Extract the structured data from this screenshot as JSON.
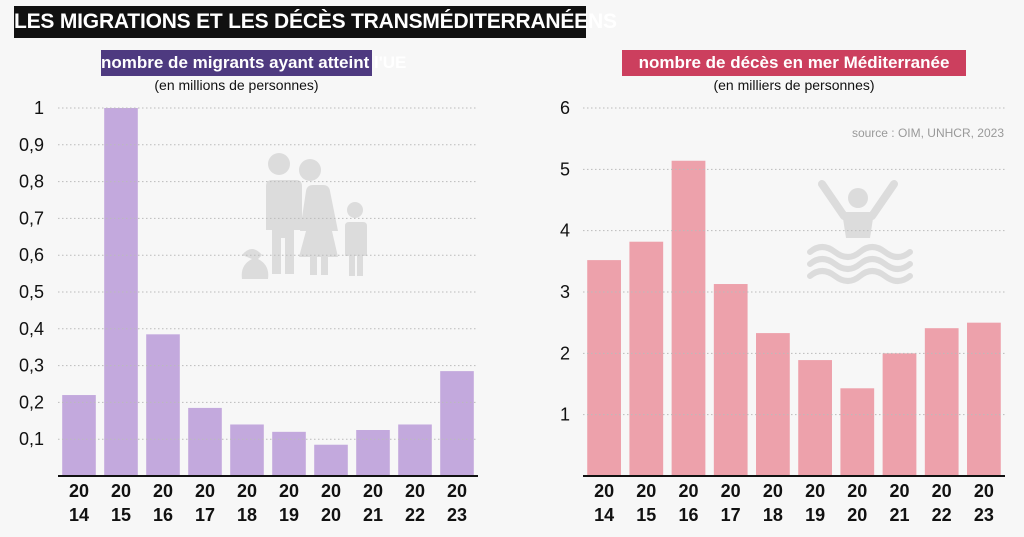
{
  "header": {
    "title": "LES MIGRATIONS ET LES DÉCÈS TRANSMÉDITERRANÉENS",
    "source": "source : OIM, UNHCR, 2023"
  },
  "colors": {
    "left_bar": "#c3a9dd",
    "right_bar": "#eda1ab",
    "left_title_bg": "#4e3a80",
    "right_title_bg": "#cc3f5e",
    "icon": "#dcdcdc"
  },
  "icons": {
    "left": "family-migrants-icon",
    "right": "drowning-person-icon"
  },
  "chart_data": [
    {
      "type": "bar",
      "title": "nombre de migrants ayant atteint l'UE",
      "subtitle": "(en millions de personnes)",
      "xlabel": "",
      "ylabel": "",
      "categories": [
        [
          "20",
          "14"
        ],
        [
          "20",
          "15"
        ],
        [
          "20",
          "16"
        ],
        [
          "20",
          "17"
        ],
        [
          "20",
          "18"
        ],
        [
          "20",
          "19"
        ],
        [
          "20",
          "20"
        ],
        [
          "20",
          "21"
        ],
        [
          "20",
          "22"
        ],
        [
          "20",
          "23"
        ]
      ],
      "values": [
        0.22,
        1.0,
        0.385,
        0.185,
        0.14,
        0.12,
        0.085,
        0.125,
        0.14,
        0.285
      ],
      "ylim": [
        0,
        1
      ],
      "yticks": [
        0.1,
        0.2,
        0.3,
        0.4,
        0.5,
        0.6,
        0.7,
        0.8,
        0.9,
        1
      ],
      "ytick_labels": [
        "0,1",
        "0,2",
        "0,3",
        "0,4",
        "0,5",
        "0,6",
        "0,7",
        "0,8",
        "0,9",
        "1"
      ],
      "grid": true,
      "legend": "none"
    },
    {
      "type": "bar",
      "title": "nombre de décès en mer Méditerranée",
      "subtitle": "(en milliers de personnes)",
      "xlabel": "",
      "ylabel": "",
      "categories": [
        [
          "20",
          "14"
        ],
        [
          "20",
          "15"
        ],
        [
          "20",
          "16"
        ],
        [
          "20",
          "17"
        ],
        [
          "20",
          "18"
        ],
        [
          "20",
          "19"
        ],
        [
          "20",
          "20"
        ],
        [
          "20",
          "21"
        ],
        [
          "20",
          "22"
        ],
        [
          "20",
          "23"
        ]
      ],
      "values": [
        3.52,
        3.82,
        5.14,
        3.13,
        2.33,
        1.89,
        1.43,
        2.0,
        2.41,
        2.5
      ],
      "ylim": [
        0,
        6
      ],
      "yticks": [
        1,
        2,
        3,
        4,
        5,
        6
      ],
      "ytick_labels": [
        "1",
        "2",
        "3",
        "4",
        "5",
        "6"
      ],
      "grid": true,
      "legend": "none"
    }
  ]
}
